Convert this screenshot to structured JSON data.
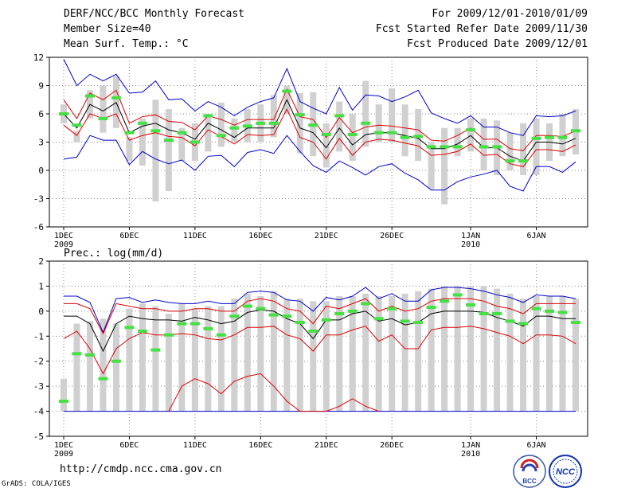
{
  "header": {
    "title": "DERF/NCC/BCC Monthly Forecast",
    "member_size": "Member Size=40",
    "variable": "Mean Surf. Temp.: °C",
    "period": "For 2009/12/01-2010/01/09",
    "started": "Fcst Started Refer Date 2009/11/30",
    "produced": "Fcst Produced Date 2009/12/01"
  },
  "footer": {
    "url": "http://cmdp.ncc.cma.gov.cn",
    "credit": "GrADS: COLA/IGES",
    "logo_left": "BCC",
    "logo_right": "NCC"
  },
  "colors": {
    "box": "#d0d0d0",
    "median": "#44e044",
    "mean": "#000000",
    "inner": "#dd0000",
    "outer": "#0000cc",
    "grid": "#888888"
  },
  "chart_data": [
    {
      "type": "box",
      "title": "Mean Surf. Temp.: °C",
      "xlabel": "",
      "ylabel": "",
      "ylim": [
        -6,
        12
      ],
      "yticks": [
        12,
        9,
        6,
        3,
        0,
        -3,
        -6
      ],
      "x_ticks": [
        {
          "day": 1,
          "label": "1DEC",
          "sub": "2009"
        },
        {
          "day": 6,
          "label": "6DEC",
          "sub": ""
        },
        {
          "day": 11,
          "label": "11DEC",
          "sub": ""
        },
        {
          "day": 16,
          "label": "16DEC",
          "sub": ""
        },
        {
          "day": 21,
          "label": "21DEC",
          "sub": ""
        },
        {
          "day": 26,
          "label": "26DEC",
          "sub": ""
        },
        {
          "day": 32,
          "label": "1JAN",
          "sub": "2010"
        },
        {
          "day": 37,
          "label": "6JAN",
          "sub": ""
        }
      ],
      "days": [
        1,
        2,
        3,
        4,
        5,
        6,
        7,
        8,
        9,
        10,
        11,
        12,
        13,
        14,
        15,
        16,
        17,
        18,
        19,
        20,
        21,
        22,
        23,
        24,
        25,
        26,
        27,
        28,
        29,
        30,
        31,
        32,
        33,
        34,
        35,
        36,
        37,
        38,
        39,
        40
      ],
      "box_low": [
        5.0,
        3.0,
        5.5,
        4.0,
        4.5,
        1.0,
        0.5,
        -3.3,
        -2.2,
        1.0,
        1.0,
        2.0,
        2.5,
        3.0,
        3.0,
        3.0,
        3.5,
        6.0,
        1.8,
        1.5,
        0.3,
        2.0,
        1.0,
        2.5,
        3.0,
        3.0,
        1.5,
        1.0,
        -2.0,
        -3.6,
        1.5,
        2.0,
        0.0,
        -0.5,
        0.0,
        -0.5,
        -0.5,
        1.0,
        1.5,
        1.7
      ],
      "box_high": [
        7.0,
        4.2,
        8.5,
        9.0,
        10.0,
        3.5,
        5.5,
        7.5,
        6.5,
        4.5,
        5.0,
        6.0,
        7.2,
        5.5,
        6.5,
        7.0,
        8.0,
        9.0,
        8.2,
        8.3,
        5.0,
        7.3,
        6.0,
        9.5,
        7.0,
        8.7,
        7.0,
        6.5,
        3.0,
        4.5,
        4.5,
        5.5,
        5.5,
        5.3,
        4.0,
        5.0,
        5.5,
        5.0,
        6.0,
        6.5
      ],
      "median": [
        6.0,
        4.8,
        7.9,
        5.5,
        7.7,
        4.0,
        5.0,
        4.2,
        3.2,
        4.0,
        3.0,
        5.8,
        3.7,
        4.5,
        4.7,
        5.0,
        5.0,
        8.4,
        5.9,
        4.8,
        3.8,
        5.8,
        3.8,
        5.0,
        4.0,
        4.0,
        3.5,
        3.6,
        2.5,
        2.5,
        2.5,
        4.3,
        2.5,
        2.5,
        1.0,
        1.0,
        3.4,
        3.5,
        3.5,
        4.2
      ],
      "mean": [
        6.0,
        4.5,
        7.0,
        6.3,
        7.2,
        4.0,
        4.7,
        5.0,
        4.3,
        4.0,
        3.3,
        5.0,
        4.3,
        3.5,
        4.5,
        4.5,
        4.5,
        7.5,
        4.5,
        4.0,
        2.4,
        4.5,
        2.7,
        3.8,
        4.0,
        4.0,
        3.7,
        3.4,
        2.3,
        2.3,
        2.8,
        3.7,
        2.4,
        2.4,
        1.5,
        1.0,
        3.0,
        3.0,
        2.8,
        3.4
      ],
      "inner_hi": [
        7.5,
        5.5,
        8.2,
        7.5,
        8.5,
        5.0,
        5.7,
        5.9,
        5.2,
        5.1,
        4.3,
        5.8,
        5.4,
        4.8,
        5.4,
        5.4,
        5.4,
        8.6,
        5.7,
        5.4,
        3.5,
        5.6,
        4.0,
        4.6,
        4.8,
        4.7,
        4.5,
        4.3,
        3.2,
        3.1,
        3.7,
        4.5,
        3.3,
        3.3,
        2.3,
        2.1,
        3.7,
        3.7,
        3.6,
        4.2
      ],
      "inner_lo": [
        4.8,
        3.7,
        6.0,
        5.5,
        6.0,
        3.2,
        3.7,
        4.0,
        3.6,
        3.5,
        2.6,
        4.3,
        3.6,
        2.8,
        3.8,
        3.7,
        3.8,
        6.5,
        3.5,
        3.0,
        1.2,
        3.4,
        1.6,
        3.0,
        3.3,
        3.2,
        2.9,
        2.6,
        1.6,
        1.7,
        2.0,
        2.8,
        1.6,
        1.7,
        0.7,
        0.4,
        2.2,
        2.2,
        2.0,
        2.7
      ],
      "outer_hi": [
        11.8,
        9.0,
        10.2,
        9.5,
        10.2,
        8.2,
        8.3,
        9.5,
        7.5,
        7.6,
        6.3,
        7.3,
        6.7,
        5.8,
        6.7,
        7.3,
        7.7,
        10.8,
        7.3,
        6.6,
        6.0,
        8.8,
        6.4,
        8.0,
        7.9,
        7.3,
        7.8,
        8.5,
        6.1,
        5.5,
        5.0,
        5.8,
        4.6,
        4.6,
        4.0,
        3.7,
        5.8,
        5.7,
        5.8,
        6.3
      ],
      "outer_lo": [
        1.2,
        1.4,
        3.7,
        3.2,
        3.2,
        0.6,
        2.0,
        1.2,
        0.7,
        1.1,
        0.0,
        1.5,
        1.6,
        0.4,
        1.9,
        2.2,
        1.8,
        3.7,
        2.0,
        0.5,
        -0.2,
        1.0,
        0.3,
        -0.5,
        0.4,
        0.7,
        -0.3,
        -1.0,
        -2.1,
        -2.1,
        -1.2,
        -0.7,
        -0.4,
        0.0,
        -1.7,
        -2.2,
        0.4,
        0.4,
        -0.2,
        0.9
      ]
    },
    {
      "type": "box",
      "title": "Prec.: log(mm/d)",
      "xlabel": "",
      "ylabel": "",
      "ylim": [
        -5,
        2
      ],
      "yticks": [
        2,
        1,
        0,
        -1,
        -2,
        -3,
        -4,
        -5
      ],
      "x_ticks": [
        {
          "day": 1,
          "label": "1DEC",
          "sub": "2009"
        },
        {
          "day": 6,
          "label": "6DEC",
          "sub": ""
        },
        {
          "day": 11,
          "label": "11DEC",
          "sub": ""
        },
        {
          "day": 16,
          "label": "16DEC",
          "sub": ""
        },
        {
          "day": 21,
          "label": "21DEC",
          "sub": ""
        },
        {
          "day": 26,
          "label": "26DEC",
          "sub": ""
        },
        {
          "day": 32,
          "label": "1JAN",
          "sub": "2010"
        },
        {
          "day": 37,
          "label": "6JAN",
          "sub": ""
        }
      ],
      "days": [
        1,
        2,
        3,
        4,
        5,
        6,
        7,
        8,
        9,
        10,
        11,
        12,
        13,
        14,
        15,
        16,
        17,
        18,
        19,
        20,
        21,
        22,
        23,
        24,
        25,
        26,
        27,
        28,
        29,
        30,
        31,
        32,
        33,
        34,
        35,
        36,
        37,
        38,
        39,
        40
      ],
      "box_low": [
        -4.0,
        -4.0,
        -4.0,
        -4.0,
        -4.0,
        -4.0,
        -4.0,
        -4.0,
        -4.0,
        -4.0,
        -4.0,
        -4.0,
        -4.0,
        -4.0,
        -4.0,
        -4.0,
        -4.0,
        -4.0,
        -4.0,
        -4.0,
        -4.0,
        -4.0,
        -4.0,
        -4.0,
        -4.0,
        -4.0,
        -4.0,
        -4.0,
        -4.0,
        -4.0,
        -4.0,
        -4.0,
        -4.0,
        -4.0,
        -4.0,
        -4.0,
        -4.0,
        -4.0,
        -4.0,
        -4.0
      ],
      "box_high": [
        -2.7,
        -0.5,
        -0.4,
        -0.3,
        -0.5,
        0.1,
        0.3,
        0.2,
        -0.1,
        0.3,
        0.1,
        0.2,
        0.2,
        0.5,
        0.7,
        0.6,
        0.8,
        0.5,
        0.5,
        0.4,
        0.4,
        0.6,
        0.6,
        0.7,
        0.6,
        0.6,
        0.7,
        0.8,
        0.9,
        1.0,
        1.0,
        1.0,
        1.0,
        0.9,
        0.7,
        0.5,
        0.6,
        0.6,
        0.6,
        0.5
      ],
      "median": [
        -3.6,
        -1.7,
        -1.75,
        -2.7,
        -2.0,
        -0.65,
        -0.8,
        -1.55,
        -0.95,
        -0.5,
        -0.5,
        -0.7,
        -0.95,
        -0.2,
        0.2,
        0.1,
        -0.15,
        -0.2,
        -0.45,
        -0.8,
        -0.35,
        -0.1,
        0.0,
        0.3,
        -0.3,
        0.1,
        -0.4,
        -0.45,
        0.15,
        0.4,
        0.65,
        0.25,
        -0.1,
        -0.1,
        -0.4,
        -0.5,
        0.1,
        0.0,
        -0.05,
        -0.45
      ],
      "mean": [
        -0.2,
        -0.2,
        -0.5,
        -1.6,
        -0.5,
        -0.2,
        -0.3,
        -0.35,
        -0.35,
        -0.4,
        -0.25,
        -0.35,
        -0.5,
        -0.4,
        -0.05,
        0.05,
        0.0,
        -0.3,
        -0.5,
        -1.1,
        -0.35,
        -0.35,
        -0.1,
        0.0,
        -0.4,
        -0.3,
        -0.55,
        -0.45,
        -0.1,
        0.0,
        0.0,
        0.0,
        -0.05,
        -0.25,
        -0.4,
        -0.6,
        -0.2,
        -0.2,
        -0.3,
        -0.3
      ],
      "inner_hi": [
        0.3,
        0.3,
        0.1,
        -0.9,
        0.3,
        0.2,
        0.1,
        0.1,
        0.0,
        0.0,
        0.1,
        0.1,
        0.0,
        0.0,
        0.4,
        0.5,
        0.4,
        0.1,
        0.0,
        -0.5,
        0.2,
        0.1,
        0.3,
        0.5,
        0.0,
        0.2,
        0.0,
        0.1,
        0.4,
        0.5,
        0.5,
        0.5,
        0.4,
        0.2,
        0.1,
        -0.1,
        0.3,
        0.3,
        0.3,
        0.3
      ],
      "inner_lo": [
        -1.1,
        -0.8,
        -1.5,
        -2.5,
        -1.5,
        -1.1,
        -0.85,
        -0.95,
        -0.95,
        -0.9,
        -0.95,
        -1.1,
        -1.15,
        -0.95,
        -0.65,
        -0.65,
        -0.6,
        -0.95,
        -1.1,
        -1.6,
        -0.95,
        -0.95,
        -0.75,
        -0.6,
        -1.2,
        -0.95,
        -1.5,
        -1.5,
        -0.75,
        -0.65,
        -0.65,
        -0.6,
        -0.7,
        -0.85,
        -1.0,
        -1.3,
        -0.95,
        -0.95,
        -1.0,
        -1.3
      ],
      "outer_hi": [
        0.6,
        0.6,
        0.35,
        -0.85,
        0.5,
        0.55,
        0.35,
        0.45,
        0.35,
        0.3,
        0.3,
        0.4,
        0.3,
        0.3,
        0.75,
        0.8,
        0.75,
        0.45,
        0.4,
        0.0,
        0.55,
        0.45,
        0.6,
        0.95,
        0.5,
        0.7,
        0.4,
        0.4,
        0.85,
        0.95,
        0.95,
        0.9,
        0.8,
        0.65,
        0.55,
        0.35,
        0.65,
        0.6,
        0.6,
        0.5
      ],
      "outer_lo": [
        -4.0,
        -4.0,
        -4.0,
        -4.0,
        -4.0,
        -4.0,
        -4.0,
        -4.0,
        -4.0,
        -4.0,
        -4.0,
        -4.0,
        -4.0,
        -4.0,
        -4.0,
        -4.0,
        -4.0,
        -4.0,
        -4.0,
        -4.0,
        -4.0,
        -4.0,
        -4.0,
        -4.0,
        -4.0,
        -4.0,
        -4.0,
        -4.0,
        -4.0,
        -4.0,
        -4.0,
        -4.0,
        -4.0,
        -4.0,
        -4.0,
        -4.0,
        -4.0,
        -4.0,
        -4.0,
        -4.0
      ],
      "low_tail": {
        "days": [
          9,
          10,
          11,
          12,
          13,
          14,
          15,
          16,
          17,
          18,
          19,
          20,
          21,
          22,
          23,
          24,
          25
        ],
        "values": [
          -4.0,
          -3.0,
          -2.7,
          -2.9,
          -3.3,
          -2.8,
          -2.6,
          -2.5,
          -3.0,
          -3.6,
          -4.0,
          -4.0,
          -4.0,
          -3.8,
          -3.5,
          -3.8,
          -4.0
        ]
      }
    }
  ]
}
